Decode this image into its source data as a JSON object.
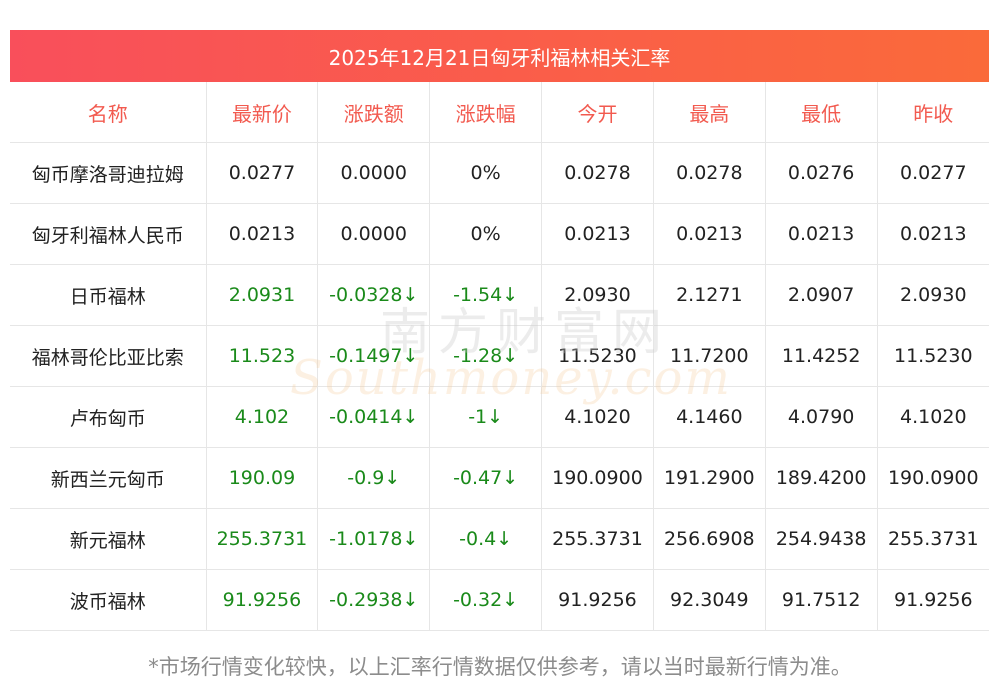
{
  "title": "2025年12月21日匈牙利福林相关汇率",
  "columns": [
    "名称",
    "最新价",
    "涨跌额",
    "涨跌幅",
    "今开",
    "最高",
    "最低",
    "昨收"
  ],
  "rows": [
    [
      "匈币摩洛哥迪拉姆",
      "0.0277",
      "0.0000",
      "0%",
      "0.0278",
      "0.0278",
      "0.0276",
      "0.0277"
    ],
    [
      "匈牙利福林人民币",
      "0.0213",
      "0.0000",
      "0%",
      "0.0213",
      "0.0213",
      "0.0213",
      "0.0213"
    ],
    [
      "日币福林",
      "2.0931",
      "-0.0328↓",
      "-1.54↓",
      "2.0930",
      "2.1271",
      "2.0907",
      "2.0930"
    ],
    [
      "福林哥伦比亚比索",
      "11.523",
      "-0.1497↓",
      "-1.28↓",
      "11.5230",
      "11.7200",
      "11.4252",
      "11.5230"
    ],
    [
      "卢布匈币",
      "4.102",
      "-0.0414↓",
      "-1↓",
      "4.1020",
      "4.1460",
      "4.0790",
      "4.1020"
    ],
    [
      "新西兰元匈币",
      "190.09",
      "-0.9↓",
      "-0.47↓",
      "190.0900",
      "191.2900",
      "189.4200",
      "190.0900"
    ],
    [
      "新元福林",
      "255.3731",
      "-1.0178↓",
      "-0.4↓",
      "255.3731",
      "256.6908",
      "254.9438",
      "255.3731"
    ],
    [
      "波币福林",
      "91.9256",
      "-0.2938↓",
      "-0.32↓",
      "91.9256",
      "92.3049",
      "91.7512",
      "91.9256"
    ]
  ],
  "down_rows": [
    2,
    3,
    4,
    5,
    6,
    7
  ],
  "watermark": {
    "cn": "南方财富网",
    "en": "Southmoney.com"
  },
  "footer": "*市场行情变化较快，以上汇率行情数据仅供参考，请以当时最新行情为准。",
  "colors": {
    "header_gradient_start": "#f94f5b",
    "header_gradient_end": "#fa6a3a",
    "column_header_text": "#f25a4f",
    "down_text": "#1a8a1a"
  }
}
